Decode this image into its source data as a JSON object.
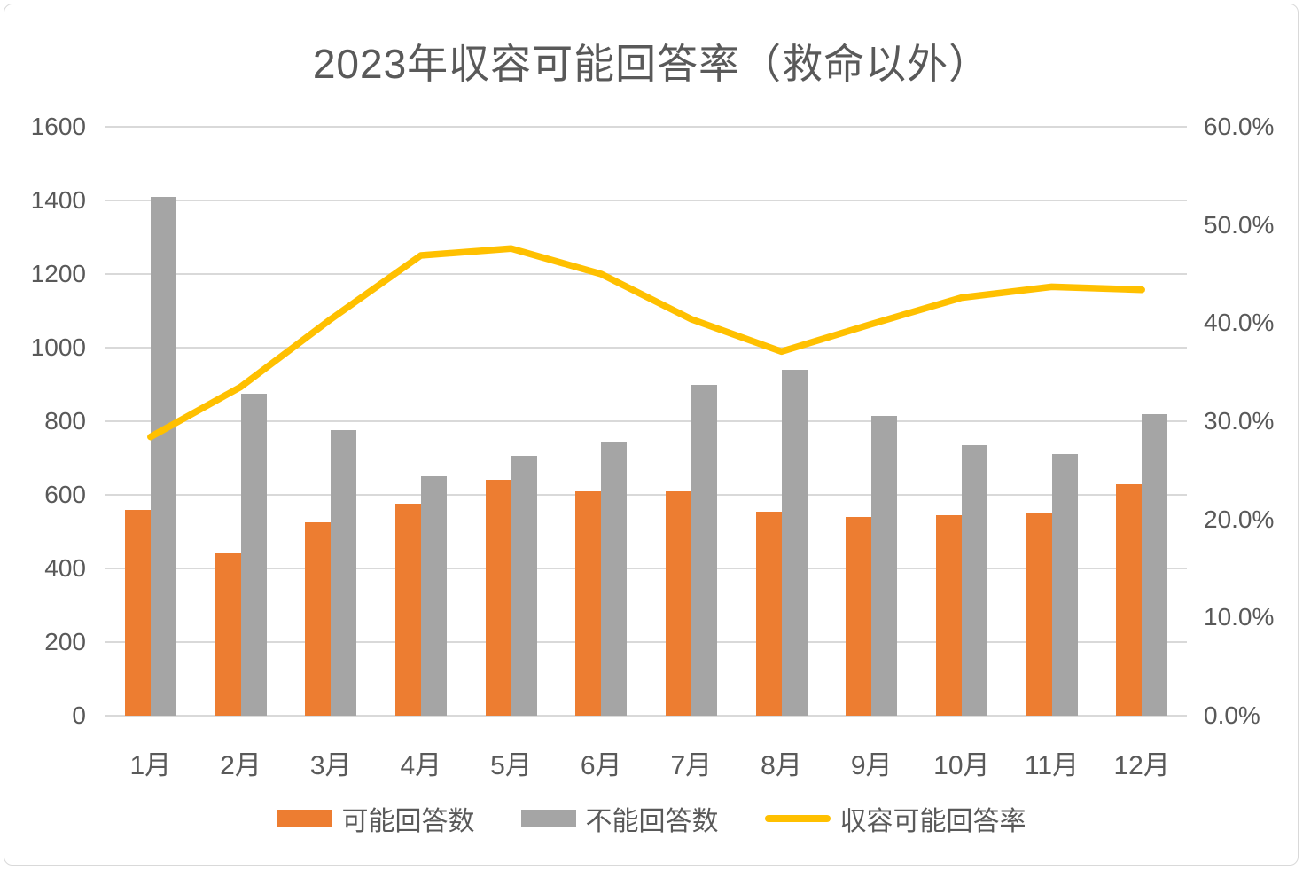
{
  "chart_data": {
    "type": "bar",
    "subtype": "combo-bar-line",
    "title": "2023年収容可能回答率（救命以外）",
    "categories": [
      "1月",
      "2月",
      "3月",
      "4月",
      "5月",
      "6月",
      "7月",
      "8月",
      "9月",
      "10月",
      "11月",
      "12月"
    ],
    "series": [
      {
        "name": "可能回答数",
        "type": "bar",
        "axis": "left",
        "color": "#ED7D31",
        "values": [
          560,
          440,
          525,
          575,
          640,
          610,
          610,
          555,
          540,
          545,
          550,
          630
        ]
      },
      {
        "name": "不能回答数",
        "type": "bar",
        "axis": "left",
        "color": "#A5A5A5",
        "values": [
          1410,
          875,
          775,
          650,
          705,
          745,
          900,
          940,
          815,
          735,
          710,
          820
        ]
      },
      {
        "name": "収容可能回答率",
        "type": "line",
        "axis": "right",
        "color": "#FFC000",
        "values": [
          28.4,
          33.5,
          40.4,
          46.9,
          47.6,
          45.0,
          40.4,
          37.1,
          39.9,
          42.6,
          43.7,
          43.4
        ]
      }
    ],
    "left_axis": {
      "min": 0,
      "max": 1600,
      "step": 200,
      "tick_labels": [
        "0",
        "200",
        "400",
        "600",
        "800",
        "1000",
        "1200",
        "1400",
        "1600"
      ]
    },
    "right_axis": {
      "min": 0,
      "max": 60,
      "step": 10,
      "tick_labels": [
        "0.0%",
        "10.0%",
        "20.0%",
        "30.0%",
        "40.0%",
        "50.0%",
        "60.0%"
      ]
    },
    "grid": true,
    "legend_position": "bottom"
  },
  "colors": {
    "bar_possible": "#ED7D31",
    "bar_impossible": "#A5A5A5",
    "rate_line": "#FFC000",
    "text": "#595959",
    "gridline": "#D9D9D9",
    "frame_border": "#D9D9D9",
    "background": "#FFFFFF"
  }
}
